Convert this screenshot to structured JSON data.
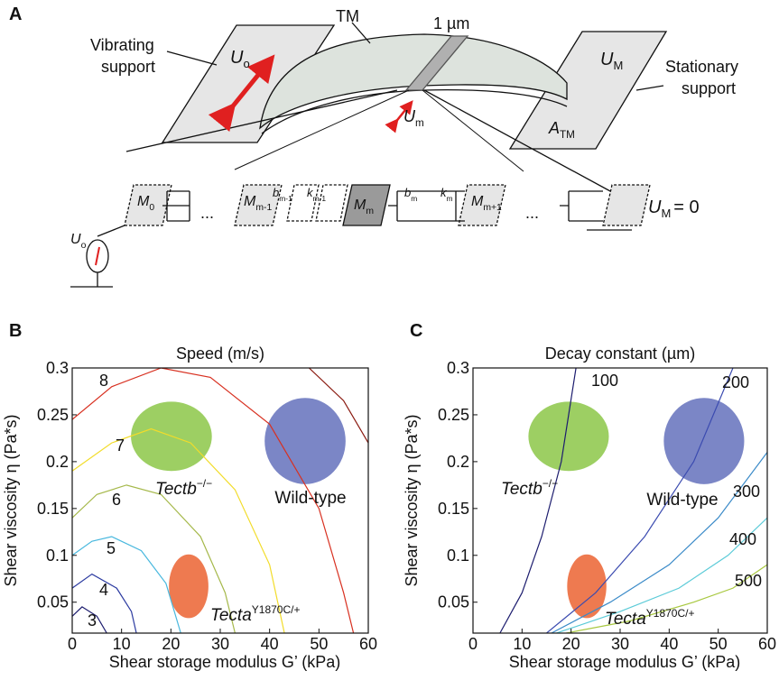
{
  "panel_a": {
    "label": "A",
    "vibrating_support": [
      "Vibrating",
      "support"
    ],
    "stationary_support": [
      "Stationary",
      "support"
    ],
    "tm": "TM",
    "scale": "1 µm",
    "u_o": {
      "base": "U",
      "sub": "o"
    },
    "u_M": {
      "base": "U",
      "sub": "M"
    },
    "u_m": {
      "base": "U",
      "sub": "m"
    },
    "a_tm": {
      "base": "A",
      "sub": "TM"
    },
    "masses": [
      {
        "base": "M",
        "sub": "0"
      },
      {
        "base": "M",
        "sub": "m-1"
      },
      {
        "base": "M",
        "sub": "m"
      },
      {
        "base": "M",
        "sub": "m+1"
      }
    ],
    "elements": [
      {
        "base": "b",
        "sub": "m-1"
      },
      {
        "base": "k",
        "sub": "m-1"
      },
      {
        "base": "b",
        "sub": "m"
      },
      {
        "base": "k",
        "sub": "m"
      }
    ],
    "ellipsis": "...",
    "boundary": {
      "base": "U",
      "sub": "M",
      "tail": "= 0"
    },
    "drive": {
      "base": "U",
      "sub": "o"
    }
  },
  "chart_data": [
    {
      "type": "contour",
      "panel": "B",
      "title": "Speed (m/s)",
      "xlabel": "Shear storage modulus G’ (kPa)",
      "ylabel": "Shear viscosity η (Pa*s)",
      "xlim": [
        0,
        60
      ],
      "ylim": [
        0.017,
        0.3
      ],
      "xticks": [
        0,
        10,
        20,
        30,
        40,
        50,
        60
      ],
      "yticks": [
        0.05,
        0.1,
        0.15,
        0.2,
        0.25,
        0.3
      ],
      "series": [
        {
          "level": 3,
          "color": "#1c1c6e",
          "x": [
            0,
            2,
            5,
            7
          ],
          "values": [
            0.035,
            0.045,
            0.035,
            0.017
          ]
        },
        {
          "level": 4,
          "color": "#2b3aa0",
          "x": [
            0,
            4,
            9,
            12,
            13
          ],
          "values": [
            0.065,
            0.08,
            0.065,
            0.04,
            0.017
          ]
        },
        {
          "level": 5,
          "color": "#49b8de",
          "x": [
            0,
            4,
            8,
            14,
            19,
            22
          ],
          "values": [
            0.1,
            0.115,
            0.12,
            0.105,
            0.07,
            0.017
          ]
        },
        {
          "level": 6,
          "color": "#a5b84a",
          "x": [
            0,
            5,
            11,
            18,
            26,
            31,
            33
          ],
          "values": [
            0.14,
            0.165,
            0.175,
            0.165,
            0.12,
            0.06,
            0.017
          ]
        },
        {
          "level": 7,
          "color": "#f2dc2a",
          "x": [
            0,
            8,
            16,
            24,
            33,
            40,
            43
          ],
          "values": [
            0.19,
            0.22,
            0.235,
            0.22,
            0.17,
            0.09,
            0.017
          ]
        },
        {
          "level": 8,
          "color": "#d83020",
          "x": [
            0,
            8,
            18,
            28,
            40,
            50,
            55,
            57
          ],
          "values": [
            0.245,
            0.28,
            0.3,
            0.29,
            0.24,
            0.15,
            0.06,
            0.017
          ]
        },
        {
          "color": "#8a1a10",
          "x": [
            48,
            55,
            60
          ],
          "values": [
            0.3,
            0.265,
            0.22
          ]
        }
      ],
      "regions": [
        {
          "name": "Tectb",
          "sup": "−/−",
          "color": "#9dcf63",
          "x": 20.1,
          "rx": 8.2,
          "y": 0.227,
          "ry": 0.037
        },
        {
          "name": "Wild-type",
          "color": "#7b86c6",
          "x": 47.2,
          "rx": 8.2,
          "y": 0.222,
          "ry": 0.046
        },
        {
          "name": "Tecta",
          "sup": "Y1870C/+",
          "color": "#ee7a50",
          "x": 23.6,
          "rx": 4,
          "y": 0.067,
          "ry": 0.034
        }
      ]
    },
    {
      "type": "contour",
      "panel": "C",
      "title": "Decay constant (µm)",
      "xlabel": "Shear storage modulus G’ (kPa)",
      "ylabel": "Shear viscosity η (Pa*s)",
      "xlim": [
        0,
        60
      ],
      "ylim": [
        0.017,
        0.3
      ],
      "xticks": [
        0,
        10,
        20,
        30,
        40,
        50,
        60
      ],
      "yticks": [
        0.05,
        0.1,
        0.15,
        0.2,
        0.25,
        0.3
      ],
      "series": [
        {
          "level": 100,
          "color": "#1c1c6e",
          "x": [
            5.5,
            10,
            14,
            18,
            21
          ],
          "values": [
            0.017,
            0.06,
            0.12,
            0.2,
            0.3
          ]
        },
        {
          "level": 200,
          "color": "#3b4bb0",
          "x": [
            15,
            25,
            35,
            45,
            53
          ],
          "values": [
            0.017,
            0.06,
            0.12,
            0.2,
            0.3
          ]
        },
        {
          "level": 300,
          "color": "#3a8ac8",
          "x": [
            16,
            28,
            40,
            50,
            60
          ],
          "values": [
            0.017,
            0.05,
            0.09,
            0.14,
            0.21
          ]
        },
        {
          "level": 400,
          "color": "#5ccbd8",
          "x": [
            17,
            30,
            42,
            52,
            60
          ],
          "values": [
            0.017,
            0.04,
            0.065,
            0.1,
            0.14
          ]
        },
        {
          "level": 500,
          "color": "#a8c840",
          "x": [
            19,
            32,
            45,
            53,
            60
          ],
          "values": [
            0.017,
            0.03,
            0.05,
            0.065,
            0.09
          ]
        }
      ],
      "regions": [
        {
          "name": "Tectb",
          "sup": "−/−",
          "color": "#9dcf63",
          "x": 19.5,
          "rx": 8.2,
          "y": 0.227,
          "ry": 0.037
        },
        {
          "name": "Wild-type",
          "color": "#7b86c6",
          "x": 47.1,
          "rx": 8.2,
          "y": 0.222,
          "ry": 0.046
        },
        {
          "name": "Tecta",
          "sup": "Y1870C/+",
          "color": "#ee7a50",
          "x": 23.2,
          "rx": 4,
          "y": 0.067,
          "ry": 0.034
        }
      ]
    }
  ]
}
